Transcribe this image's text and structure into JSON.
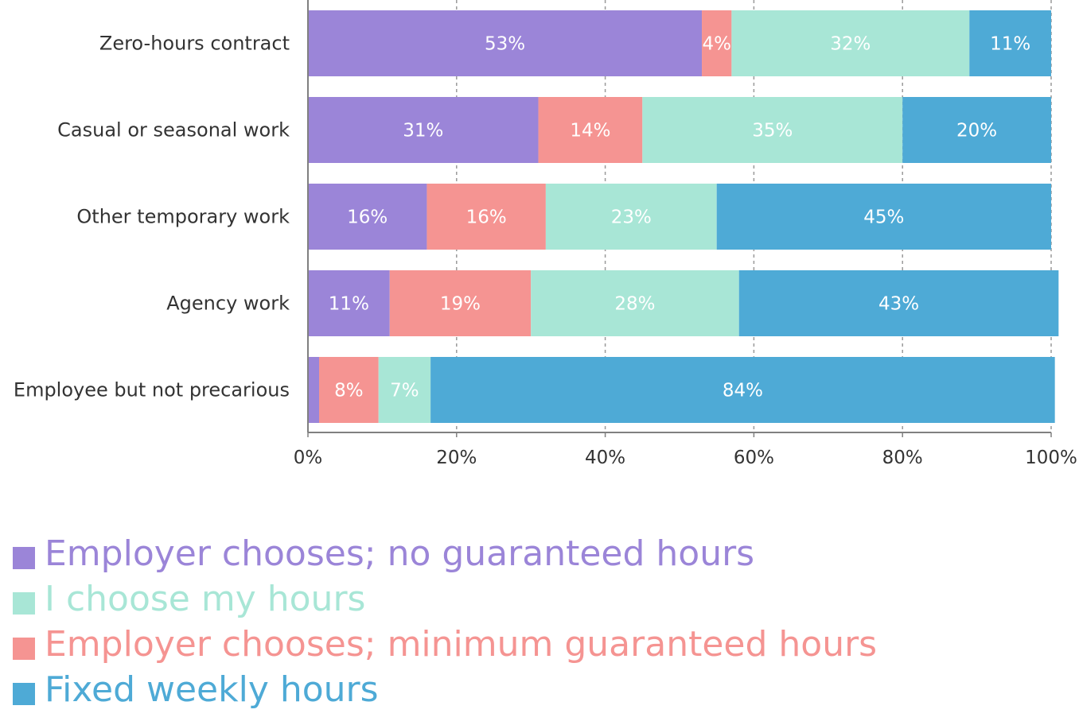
{
  "chart_data": {
    "type": "bar",
    "orientation": "horizontal",
    "stacked": true,
    "categories": [
      "Zero-hours contract",
      "Casual or seasonal work",
      "Other temporary work",
      "Agency work",
      "Employee but not precarious"
    ],
    "series": [
      {
        "name": "Employer chooses; no guaranteed hours",
        "color": "#9b85d8",
        "values": [
          53,
          31,
          16,
          11,
          1.5
        ],
        "labels": [
          "53%",
          "31%",
          "16%",
          "11%",
          ""
        ]
      },
      {
        "name": "Employer chooses; minimum guaranteed hours",
        "color": "#f59492",
        "values": [
          4,
          14,
          16,
          19,
          8
        ],
        "labels": [
          "4%",
          "14%",
          "16%",
          "19%",
          "8%"
        ]
      },
      {
        "name": "I choose my hours",
        "color": "#a8e6d6",
        "values": [
          32,
          35,
          23,
          28,
          7
        ],
        "labels": [
          "32%",
          "35%",
          "23%",
          "28%",
          "7%"
        ]
      },
      {
        "name": "Fixed weekly hours",
        "color": "#4eaad6",
        "values": [
          11,
          20,
          45,
          43,
          84
        ],
        "labels": [
          "11%",
          "20%",
          "45%",
          "43%",
          "84%"
        ]
      }
    ],
    "x_ticks": [
      "0%",
      "20%",
      "40%",
      "60%",
      "80%",
      "100%"
    ],
    "xlim": [
      0,
      100
    ],
    "grid": "vertical dashed",
    "legend_position": "bottom-left",
    "xlabel": "",
    "ylabel": "",
    "title": ""
  },
  "legend": [
    {
      "label": "Employer chooses; no guaranteed hours",
      "color": "#9b85d8"
    },
    {
      "label": "I choose my hours",
      "color": "#a8e6d6"
    },
    {
      "label": "Employer chooses; minimum guaranteed hours",
      "color": "#f59492"
    },
    {
      "label": "Fixed weekly hours",
      "color": "#4eaad6"
    }
  ]
}
